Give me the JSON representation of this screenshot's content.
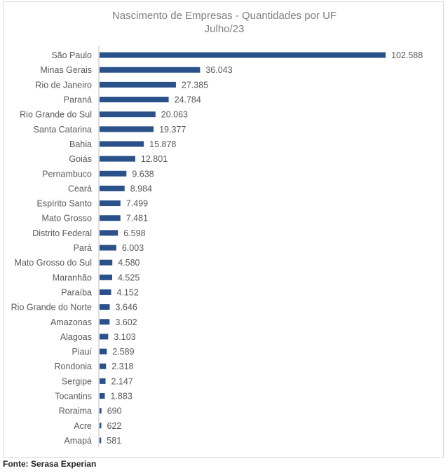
{
  "chart_data": {
    "type": "bar",
    "orientation": "horizontal",
    "title": "Nascimento de Empresas - Quantidades por UF",
    "subtitle": "Julho/23",
    "categories": [
      "São Paulo",
      "Minas Gerais",
      "Rio de Janeiro",
      "Paraná",
      "Rio Grande do Sul",
      "Santa Catarina",
      "Bahia",
      "Goiás",
      "Pernambuco",
      "Ceará",
      "Espírito Santo",
      "Mato Grosso",
      "Distrito Federal",
      "Pará",
      "Mato Grosso do Sul",
      "Maranhão",
      "Paraíba",
      "Rio Grande do Norte",
      "Amazonas",
      "Alagoas",
      "Piauí",
      "Rondonia",
      "Sergipe",
      "Tocantins",
      "Roraima",
      "Acre",
      "Amapá"
    ],
    "values": [
      102588,
      36043,
      27385,
      24784,
      20063,
      19377,
      15878,
      12801,
      9638,
      8984,
      7499,
      7481,
      6598,
      6003,
      4580,
      4525,
      4152,
      3646,
      3602,
      3103,
      2589,
      2318,
      2147,
      1883,
      690,
      622,
      581
    ],
    "value_labels": [
      "102.588",
      "36.043",
      "27.385",
      "24.784",
      "20.063",
      "19.377",
      "15.878",
      "12.801",
      "9.638",
      "8.984",
      "7.499",
      "7.481",
      "6.598",
      "6.003",
      "4.580",
      "4.525",
      "4.152",
      "3.646",
      "3.602",
      "3.103",
      "2.589",
      "2.318",
      "2.147",
      "1.883",
      "690",
      "622",
      "581"
    ],
    "xlim": [
      0,
      102588
    ],
    "grid": false,
    "legend": "none",
    "colors": {
      "bar": "#2a5189",
      "text": "#595959",
      "axis": "#bfbfbf",
      "title": "#808080"
    }
  },
  "source": "Fonte: Serasa Experian"
}
